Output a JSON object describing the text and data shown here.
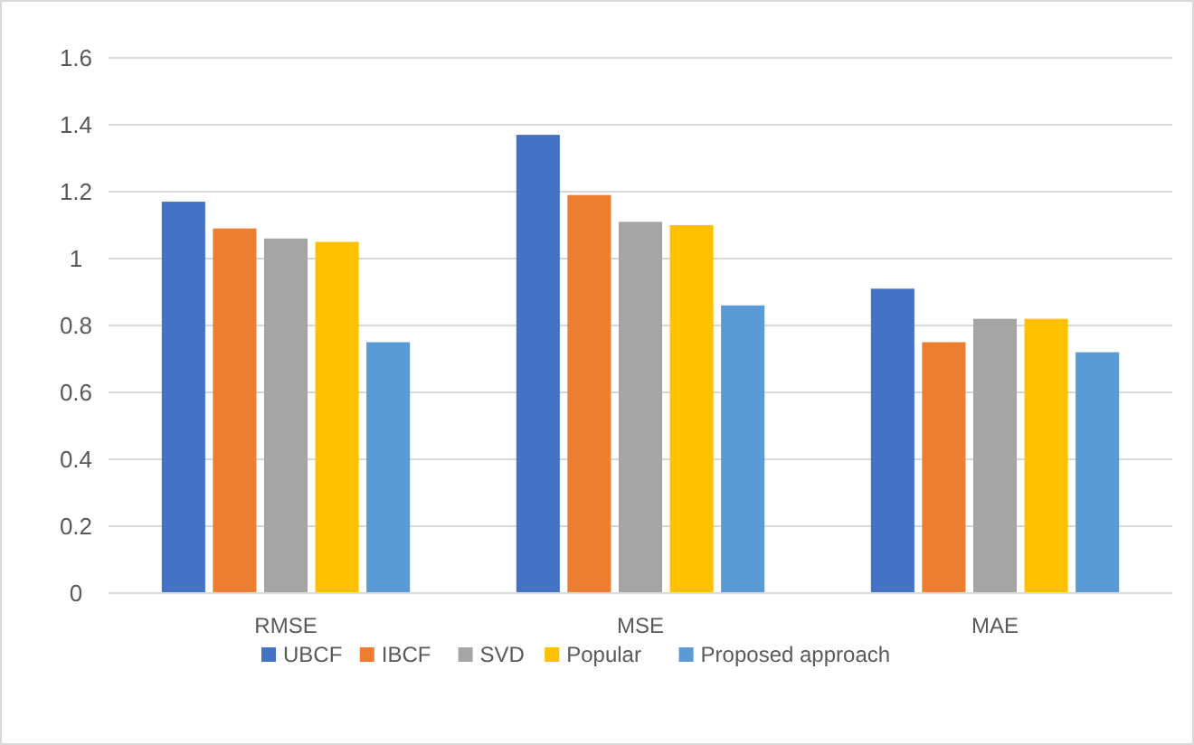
{
  "chart_data": {
    "type": "bar",
    "categories": [
      "RMSE",
      "MSE",
      "MAE"
    ],
    "series": [
      {
        "name": "UBCF",
        "color": "#4472c4",
        "values": [
          1.17,
          1.37,
          0.91
        ]
      },
      {
        "name": "IBCF",
        "color": "#ed7d31",
        "values": [
          1.09,
          1.19,
          0.75
        ]
      },
      {
        "name": "SVD",
        "color": "#a5a5a5",
        "values": [
          1.06,
          1.11,
          0.82
        ]
      },
      {
        "name": "Popular",
        "color": "#ffc000",
        "values": [
          1.05,
          1.1,
          0.82
        ]
      },
      {
        "name": "Proposed approach",
        "color": "#5b9bd5",
        "values": [
          0.75,
          0.86,
          0.72
        ]
      }
    ],
    "ylim": [
      0,
      1.6
    ],
    "yticks": [
      0,
      0.2,
      0.4,
      0.6,
      0.8,
      1,
      1.2,
      1.4,
      1.6
    ],
    "grid": "y",
    "legend": "bottom"
  }
}
